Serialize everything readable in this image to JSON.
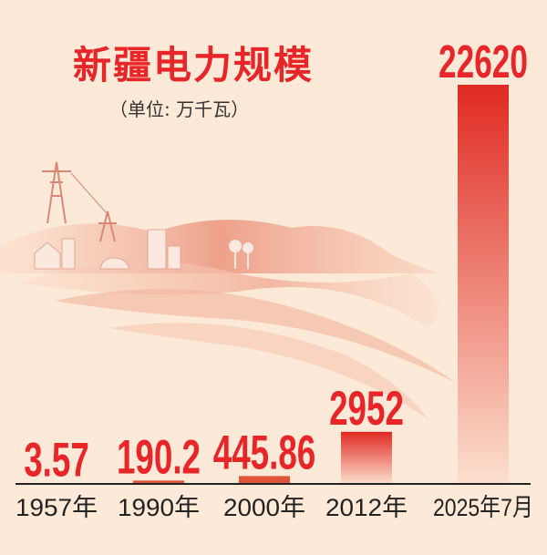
{
  "chart_data": {
    "type": "bar",
    "title": "新疆电力规模",
    "subtitle": "（单位: 万千瓦）",
    "categories": [
      "1957年",
      "1990年",
      "2000年",
      "2012年",
      "2025年7月"
    ],
    "values": [
      3.57,
      190.2,
      445.86,
      2952,
      22620
    ],
    "value_labels": [
      "3.57",
      "190.2",
      "445.86",
      "2952",
      "22620"
    ],
    "ylim": [
      0,
      22620
    ],
    "grid": false,
    "legend": "none",
    "colors": {
      "bar": "#e02a22",
      "label": "#e8262a",
      "background": "#fde9d7"
    }
  }
}
